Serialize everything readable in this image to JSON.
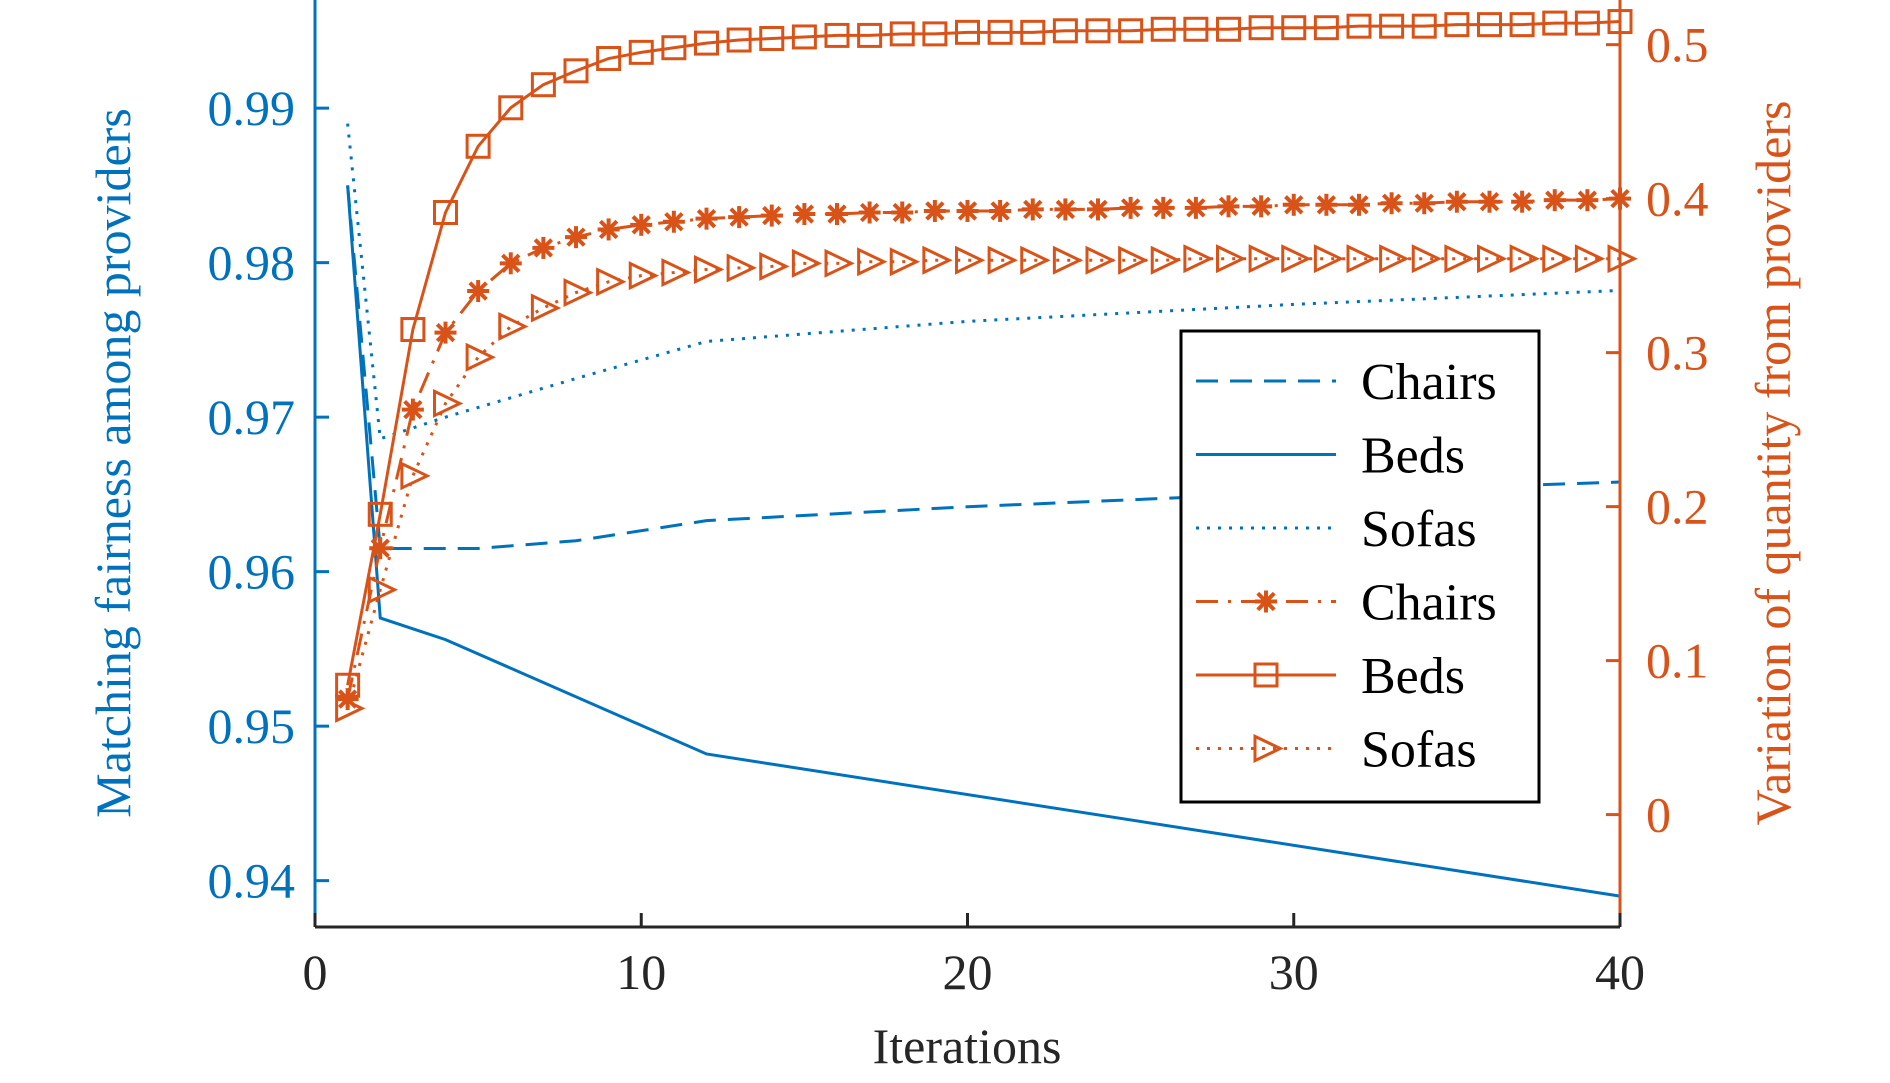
{
  "chart_data": {
    "type": "line",
    "xlabel": "Iterations",
    "ylabel_left": "Matching fairness among providers",
    "ylabel_right": "Variation of quantity from providers",
    "xlim": [
      0,
      40
    ],
    "ylim_left": [
      0.937,
      0.997
    ],
    "ylim_right": [
      -0.073,
      0.529
    ],
    "x_ticks": [
      "0",
      "10",
      "20",
      "30",
      "40"
    ],
    "y_left_ticks": [
      "0.94",
      "0.95",
      "0.96",
      "0.97",
      "0.98",
      "0.99"
    ],
    "y_right_ticks": [
      "0",
      "0.1",
      "0.2",
      "0.3",
      "0.4",
      "0.5"
    ],
    "grid": false,
    "legend_position": "center-right",
    "colors": {
      "left": "#0072BD",
      "right": "#D95319"
    },
    "series": [
      {
        "name": "Chairs",
        "axis": "left",
        "style": "dashed",
        "marker": "none",
        "x": [
          1,
          2,
          5,
          8,
          12,
          20,
          30,
          40
        ],
        "y": [
          0.985,
          0.9615,
          0.9615,
          0.962,
          0.9633,
          0.9642,
          0.9651,
          0.9658
        ]
      },
      {
        "name": "Beds",
        "axis": "left",
        "style": "solid",
        "marker": "none",
        "x": [
          1,
          2,
          4,
          12,
          40
        ],
        "y": [
          0.985,
          0.957,
          0.9556,
          0.9482,
          0.939
        ]
      },
      {
        "name": "Sofas",
        "axis": "left",
        "style": "dotted",
        "marker": "none",
        "x": [
          1,
          2,
          4,
          8,
          12,
          20,
          30,
          40
        ],
        "y": [
          0.989,
          0.9686,
          0.97,
          0.9725,
          0.9749,
          0.9762,
          0.9773,
          0.9782
        ]
      },
      {
        "name": "Chairs",
        "axis": "right",
        "style": "dashdot",
        "marker": "asterisk",
        "x": [
          1,
          2,
          3,
          4,
          5,
          6,
          7,
          8,
          9,
          10,
          11,
          12,
          13,
          14,
          15,
          16,
          17,
          18,
          19,
          20,
          21,
          22,
          23,
          24,
          25,
          26,
          27,
          28,
          29,
          30,
          31,
          32,
          33,
          34,
          35,
          36,
          37,
          38,
          39,
          40
        ],
        "y": [
          0.075,
          0.173,
          0.263,
          0.313,
          0.34,
          0.358,
          0.368,
          0.375,
          0.38,
          0.383,
          0.385,
          0.387,
          0.388,
          0.389,
          0.39,
          0.39,
          0.391,
          0.391,
          0.392,
          0.392,
          0.392,
          0.393,
          0.393,
          0.393,
          0.394,
          0.394,
          0.394,
          0.395,
          0.395,
          0.396,
          0.396,
          0.396,
          0.397,
          0.397,
          0.398,
          0.398,
          0.398,
          0.399,
          0.399,
          0.4
        ]
      },
      {
        "name": "Beds",
        "axis": "right",
        "style": "solid",
        "marker": "square",
        "x": [
          1,
          2,
          3,
          4,
          5,
          6,
          7,
          8,
          9,
          10,
          11,
          12,
          13,
          14,
          15,
          16,
          17,
          18,
          19,
          20,
          21,
          22,
          23,
          24,
          25,
          26,
          27,
          28,
          29,
          30,
          31,
          32,
          33,
          34,
          35,
          36,
          37,
          38,
          39,
          40
        ],
        "y": [
          0.084,
          0.195,
          0.315,
          0.391,
          0.434,
          0.459,
          0.474,
          0.483,
          0.491,
          0.495,
          0.498,
          0.501,
          0.503,
          0.504,
          0.505,
          0.506,
          0.506,
          0.507,
          0.507,
          0.508,
          0.508,
          0.508,
          0.509,
          0.509,
          0.509,
          0.51,
          0.51,
          0.51,
          0.511,
          0.511,
          0.511,
          0.512,
          0.512,
          0.512,
          0.513,
          0.513,
          0.513,
          0.514,
          0.514,
          0.515
        ]
      },
      {
        "name": "Sofas",
        "axis": "right",
        "style": "dotted",
        "marker": "triangle-right",
        "x": [
          1,
          2,
          3,
          4,
          5,
          6,
          7,
          8,
          9,
          10,
          11,
          12,
          13,
          14,
          15,
          16,
          17,
          18,
          19,
          20,
          21,
          22,
          23,
          24,
          25,
          26,
          27,
          28,
          29,
          30,
          31,
          32,
          33,
          34,
          35,
          36,
          37,
          38,
          39,
          40
        ],
        "y": [
          0.069,
          0.146,
          0.22,
          0.267,
          0.297,
          0.317,
          0.329,
          0.339,
          0.346,
          0.35,
          0.352,
          0.354,
          0.355,
          0.356,
          0.358,
          0.358,
          0.359,
          0.359,
          0.36,
          0.36,
          0.36,
          0.36,
          0.36,
          0.36,
          0.36,
          0.36,
          0.361,
          0.361,
          0.361,
          0.361,
          0.361,
          0.361,
          0.361,
          0.361,
          0.361,
          0.361,
          0.361,
          0.361,
          0.361,
          0.361
        ]
      }
    ]
  }
}
